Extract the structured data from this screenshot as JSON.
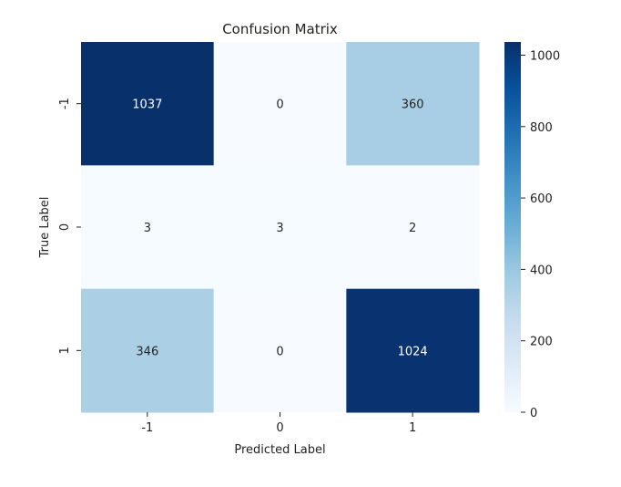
{
  "chart_data": {
    "type": "heatmap",
    "title": "Confusion Matrix",
    "xlabel": "Predicted Label",
    "ylabel": "True Label",
    "x_categories": [
      "-1",
      "0",
      "1"
    ],
    "y_categories": [
      "-1",
      "0",
      "1"
    ],
    "values": [
      [
        1037,
        0,
        360
      ],
      [
        3,
        3,
        2
      ],
      [
        346,
        0,
        1024
      ]
    ],
    "colormap": "Blues",
    "color_range": [
      0,
      1037
    ],
    "colorbar_ticks": [
      0,
      200,
      400,
      600,
      800,
      1000
    ],
    "colorbar_tick_labels": [
      "0",
      "200",
      "400",
      "600",
      "800",
      "1000"
    ],
    "grid": false
  }
}
